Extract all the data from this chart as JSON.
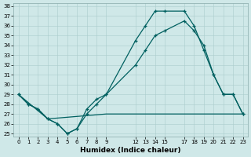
{
  "xlabel": "Humidex (Indice chaleur)",
  "bg_color": "#cfe8e8",
  "grid_color": "#aacccc",
  "line_color": "#006060",
  "ylim": [
    25,
    38
  ],
  "xlim": [
    -0.5,
    23.5
  ],
  "yticks": [
    25,
    26,
    27,
    28,
    29,
    30,
    31,
    32,
    33,
    34,
    35,
    36,
    37,
    38
  ],
  "xtick_positions": [
    0,
    1,
    2,
    3,
    4,
    5,
    6,
    7,
    8,
    9,
    12,
    13,
    14,
    15,
    17,
    18,
    19,
    20,
    21,
    22,
    23
  ],
  "xtick_labels": [
    "0",
    "1",
    "2",
    "3",
    "4",
    "5",
    "6",
    "7",
    "8",
    "9",
    "12",
    "13",
    "14",
    "15",
    "17",
    "18",
    "19",
    "20",
    "21",
    "22",
    "23"
  ],
  "line1_x": [
    0,
    1,
    2,
    3,
    4,
    5,
    6,
    7,
    8,
    9,
    12,
    13,
    14,
    15,
    17,
    18,
    19,
    20,
    21,
    22,
    23
  ],
  "line1_y": [
    29.0,
    28.0,
    27.5,
    26.5,
    26.0,
    25.0,
    25.5,
    27.5,
    28.5,
    29.0,
    34.5,
    36.0,
    37.5,
    37.5,
    37.5,
    36.0,
    33.5,
    31.0,
    29.0,
    29.0,
    27.0
  ],
  "line2_x": [
    0,
    1,
    2,
    3,
    4,
    5,
    6,
    7,
    8,
    9,
    12,
    13,
    14,
    15,
    17,
    18,
    19,
    20,
    21,
    22,
    23
  ],
  "line2_y": [
    29.0,
    28.0,
    27.5,
    26.5,
    26.0,
    25.0,
    25.5,
    27.0,
    28.0,
    29.0,
    32.0,
    33.5,
    35.0,
    35.5,
    36.5,
    35.5,
    34.0,
    31.0,
    29.0,
    29.0,
    27.0
  ],
  "line3_x": [
    0,
    3,
    9,
    15,
    23
  ],
  "line3_y": [
    29.0,
    26.5,
    27.0,
    27.0,
    27.0
  ]
}
